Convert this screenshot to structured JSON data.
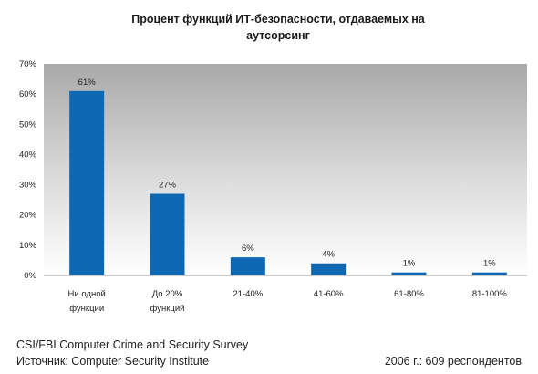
{
  "chart_data": {
    "type": "bar",
    "title_line1": "Процент функций ИТ-безопасности, отдаваемых на",
    "title_line2": "аутсорсинг",
    "categories": [
      [
        "Ни одной",
        "функции"
      ],
      [
        "До 20%",
        "функций"
      ],
      [
        "21-40%"
      ],
      [
        "41-60%"
      ],
      [
        "61-80%"
      ],
      [
        "81-100%"
      ]
    ],
    "values": [
      61,
      27,
      6,
      4,
      1,
      1
    ],
    "value_labels": [
      "61%",
      "27%",
      "6%",
      "4%",
      "1%",
      "1%"
    ],
    "ylim": [
      0,
      70
    ],
    "yticks": [
      "0%",
      "10%",
      "20%",
      "30%",
      "40%",
      "50%",
      "60%",
      "70%"
    ],
    "ytick_values": [
      0,
      10,
      20,
      30,
      40,
      50,
      60,
      70
    ],
    "grid": false,
    "bar_color": "#0f68b4",
    "plot_background": "gradient gray to white"
  },
  "footer": {
    "line1": "CSI/FBI Computer Crime and Security Survey",
    "line2": "Источник: Computer Security Institute",
    "right": "2006 г.: 609 респондентов"
  }
}
